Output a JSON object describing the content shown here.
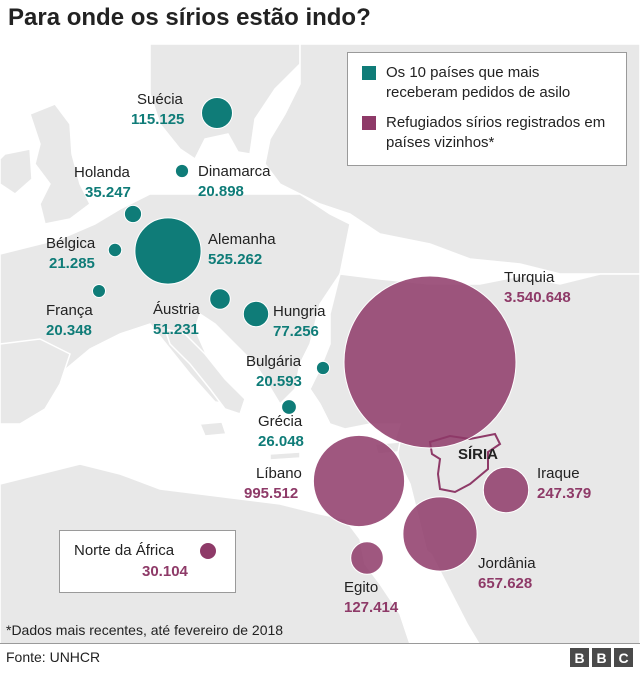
{
  "title": "Para onde os sírios estão indo?",
  "legend": {
    "asylum": {
      "label": "Os 10 países que mais receberam pedidos de asilo",
      "color": "#0f7c78"
    },
    "refugees": {
      "label": "Refugiados sírios registrados em países vizinhos*",
      "color": "#8e3a68"
    }
  },
  "countries": [
    {
      "name": "Suécia",
      "value": "115.125",
      "category": "asylum"
    },
    {
      "name": "Holanda",
      "value": "35.247",
      "category": "asylum"
    },
    {
      "name": "Dinamarca",
      "value": "20.898",
      "category": "asylum"
    },
    {
      "name": "Bélgica",
      "value": "21.285",
      "category": "asylum"
    },
    {
      "name": "Alemanha",
      "value": "525.262",
      "category": "asylum"
    },
    {
      "name": "França",
      "value": "20.348",
      "category": "asylum"
    },
    {
      "name": "Áustria",
      "value": "51.231",
      "category": "asylum"
    },
    {
      "name": "Hungria",
      "value": "77.256",
      "category": "asylum"
    },
    {
      "name": "Bulgária",
      "value": "20.593",
      "category": "asylum"
    },
    {
      "name": "Grécia",
      "value": "26.048",
      "category": "asylum"
    },
    {
      "name": "Turquia",
      "value": "3.540.648",
      "category": "refugees"
    },
    {
      "name": "Líbano",
      "value": "995.512",
      "category": "refugees"
    },
    {
      "name": "Iraque",
      "value": "247.379",
      "category": "refugees"
    },
    {
      "name": "Jordânia",
      "value": "657.628",
      "category": "refugees"
    },
    {
      "name": "Egito",
      "value": "127.414",
      "category": "refugees"
    }
  ],
  "north_africa": {
    "name": "Norte da África",
    "value": "30.104",
    "category": "refugees"
  },
  "syria_label": "SÍRIA",
  "footnote": "*Dados mais recentes, até fevereiro de 2018",
  "source": "Fonte: UNHCR",
  "logo": [
    "B",
    "B",
    "C"
  ],
  "colors": {
    "land": "#e8e8e8",
    "sea": "#ffffff",
    "border": "#ffffff",
    "teal": "#0f7c78",
    "purple": "#8e3a68"
  }
}
